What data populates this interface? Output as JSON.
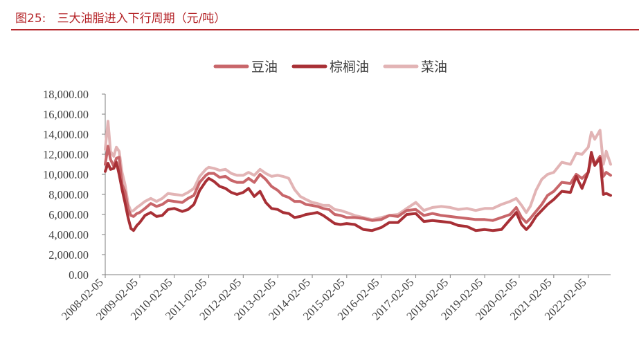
{
  "header": {
    "figure_title": "图25:   三大油脂进入下行周期（元/吨）",
    "rule_color": "#b5262a"
  },
  "chart_data": {
    "type": "line",
    "title": "",
    "xlabel": "",
    "ylabel": "",
    "ylim": [
      0,
      18000
    ],
    "y_ticks": [
      0,
      2000,
      4000,
      6000,
      8000,
      10000,
      12000,
      14000,
      16000,
      18000
    ],
    "y_tick_labels": [
      "0.00",
      "2,000.00",
      "4,000.00",
      "6,000.00",
      "8,000.00",
      "10,000.00",
      "12,000.00",
      "14,000.00",
      "16,000.00",
      "18,000.00"
    ],
    "x_ticks": [
      "2008-02-05",
      "2009-02-05",
      "2010-02-05",
      "2011-02-05",
      "2012-02-05",
      "2013-02-05",
      "2014-02-05",
      "2015-02-05",
      "2016-02-05",
      "2017-02-05",
      "2018-02-05",
      "2019-02-05",
      "2020-02-05",
      "2021-02-05",
      "2022-02-05"
    ],
    "x_end": "2022-09-30",
    "grid": false,
    "legend_position": "top",
    "series": [
      {
        "name": "豆油",
        "color": "#c8666a",
        "points": [
          [
            "2008-02-05",
            11000
          ],
          [
            "2008-03-05",
            12800
          ],
          [
            "2008-04-01",
            11500
          ],
          [
            "2008-05-05",
            10800
          ],
          [
            "2008-06-02",
            11600
          ],
          [
            "2008-07-01",
            11700
          ],
          [
            "2008-08-01",
            9000
          ],
          [
            "2008-09-01",
            8300
          ],
          [
            "2008-10-06",
            6500
          ],
          [
            "2008-11-03",
            5900
          ],
          [
            "2008-12-01",
            5800
          ],
          [
            "2009-01-05",
            6100
          ],
          [
            "2009-02-05",
            6200
          ],
          [
            "2009-04-01",
            6600
          ],
          [
            "2009-06-01",
            7100
          ],
          [
            "2009-08-01",
            6800
          ],
          [
            "2009-10-01",
            7000
          ],
          [
            "2009-12-01",
            7400
          ],
          [
            "2010-02-05",
            7300
          ],
          [
            "2010-05-01",
            7200
          ],
          [
            "2010-07-01",
            7600
          ],
          [
            "2010-09-01",
            7900
          ],
          [
            "2010-11-01",
            9200
          ],
          [
            "2011-01-05",
            9900
          ],
          [
            "2011-02-05",
            10100
          ],
          [
            "2011-04-01",
            10100
          ],
          [
            "2011-06-01",
            9700
          ],
          [
            "2011-08-01",
            9800
          ],
          [
            "2011-10-01",
            9400
          ],
          [
            "2011-12-01",
            9200
          ],
          [
            "2012-02-05",
            9200
          ],
          [
            "2012-04-01",
            9600
          ],
          [
            "2012-06-01",
            9200
          ],
          [
            "2012-08-01",
            10000
          ],
          [
            "2012-10-01",
            9500
          ],
          [
            "2012-12-01",
            8800
          ],
          [
            "2013-02-05",
            8400
          ],
          [
            "2013-04-01",
            7900
          ],
          [
            "2013-06-01",
            7700
          ],
          [
            "2013-08-01",
            7300
          ],
          [
            "2013-10-01",
            7300
          ],
          [
            "2013-12-01",
            7000
          ],
          [
            "2014-02-05",
            6900
          ],
          [
            "2014-04-01",
            6800
          ],
          [
            "2014-06-01",
            6600
          ],
          [
            "2014-08-01",
            6500
          ],
          [
            "2014-10-01",
            6000
          ],
          [
            "2014-12-01",
            5900
          ],
          [
            "2015-02-05",
            5700
          ],
          [
            "2015-05-01",
            5700
          ],
          [
            "2015-08-01",
            5600
          ],
          [
            "2015-11-01",
            5400
          ],
          [
            "2016-02-05",
            5500
          ],
          [
            "2016-05-01",
            5900
          ],
          [
            "2016-08-01",
            5800
          ],
          [
            "2016-11-01",
            6400
          ],
          [
            "2017-02-05",
            6500
          ],
          [
            "2017-05-01",
            5900
          ],
          [
            "2017-08-01",
            6100
          ],
          [
            "2017-11-01",
            5900
          ],
          [
            "2018-02-05",
            5800
          ],
          [
            "2018-05-01",
            5700
          ],
          [
            "2018-08-01",
            5600
          ],
          [
            "2018-11-01",
            5500
          ],
          [
            "2019-02-05",
            5500
          ],
          [
            "2019-05-01",
            5400
          ],
          [
            "2019-08-01",
            5700
          ],
          [
            "2019-11-01",
            6000
          ],
          [
            "2020-01-05",
            6700
          ],
          [
            "2020-03-01",
            5700
          ],
          [
            "2020-04-20",
            5200
          ],
          [
            "2020-06-01",
            5600
          ],
          [
            "2020-08-01",
            6300
          ],
          [
            "2020-10-01",
            7000
          ],
          [
            "2020-12-01",
            7900
          ],
          [
            "2021-02-05",
            8300
          ],
          [
            "2021-05-01",
            9200
          ],
          [
            "2021-08-01",
            9100
          ],
          [
            "2021-10-01",
            10000
          ],
          [
            "2021-12-01",
            9600
          ],
          [
            "2022-02-05",
            10200
          ],
          [
            "2022-03-10",
            11600
          ],
          [
            "2022-04-15",
            11000
          ],
          [
            "2022-06-10",
            11800
          ],
          [
            "2022-07-15",
            9800
          ],
          [
            "2022-08-15",
            10200
          ],
          [
            "2022-09-30",
            9900
          ]
        ]
      },
      {
        "name": "棕榈油",
        "color": "#a83036",
        "points": [
          [
            "2008-02-05",
            10300
          ],
          [
            "2008-03-05",
            11100
          ],
          [
            "2008-04-01",
            10500
          ],
          [
            "2008-05-05",
            10600
          ],
          [
            "2008-06-02",
            11200
          ],
          [
            "2008-07-01",
            10000
          ],
          [
            "2008-08-01",
            8500
          ],
          [
            "2008-09-01",
            7200
          ],
          [
            "2008-10-06",
            5600
          ],
          [
            "2008-11-03",
            4600
          ],
          [
            "2008-12-01",
            4400
          ],
          [
            "2009-01-05",
            4900
          ],
          [
            "2009-02-05",
            5200
          ],
          [
            "2009-04-01",
            5900
          ],
          [
            "2009-06-01",
            6200
          ],
          [
            "2009-08-01",
            5800
          ],
          [
            "2009-10-01",
            5900
          ],
          [
            "2009-12-01",
            6500
          ],
          [
            "2010-02-05",
            6600
          ],
          [
            "2010-05-01",
            6300
          ],
          [
            "2010-07-01",
            6500
          ],
          [
            "2010-09-01",
            7000
          ],
          [
            "2010-11-01",
            8400
          ],
          [
            "2011-01-05",
            9300
          ],
          [
            "2011-02-05",
            9600
          ],
          [
            "2011-04-01",
            9300
          ],
          [
            "2011-06-01",
            8800
          ],
          [
            "2011-08-01",
            8600
          ],
          [
            "2011-10-01",
            8200
          ],
          [
            "2011-12-01",
            8000
          ],
          [
            "2012-02-05",
            8200
          ],
          [
            "2012-04-01",
            8600
          ],
          [
            "2012-06-01",
            7800
          ],
          [
            "2012-08-01",
            8300
          ],
          [
            "2012-10-01",
            7200
          ],
          [
            "2012-12-01",
            6600
          ],
          [
            "2013-02-05",
            6500
          ],
          [
            "2013-04-01",
            6200
          ],
          [
            "2013-06-01",
            6100
          ],
          [
            "2013-08-01",
            5700
          ],
          [
            "2013-10-01",
            5800
          ],
          [
            "2013-12-01",
            6000
          ],
          [
            "2014-02-05",
            6100
          ],
          [
            "2014-04-01",
            6200
          ],
          [
            "2014-06-01",
            5900
          ],
          [
            "2014-08-01",
            5500
          ],
          [
            "2014-10-01",
            5100
          ],
          [
            "2014-12-01",
            5000
          ],
          [
            "2015-02-05",
            5100
          ],
          [
            "2015-05-01",
            5000
          ],
          [
            "2015-08-01",
            4500
          ],
          [
            "2015-11-01",
            4400
          ],
          [
            "2016-02-05",
            4700
          ],
          [
            "2016-05-01",
            5200
          ],
          [
            "2016-08-01",
            5200
          ],
          [
            "2016-11-01",
            6000
          ],
          [
            "2017-02-05",
            6100
          ],
          [
            "2017-05-01",
            5300
          ],
          [
            "2017-08-01",
            5400
          ],
          [
            "2017-11-01",
            5300
          ],
          [
            "2018-02-05",
            5200
          ],
          [
            "2018-05-01",
            4900
          ],
          [
            "2018-08-01",
            4800
          ],
          [
            "2018-11-01",
            4400
          ],
          [
            "2019-02-05",
            4500
          ],
          [
            "2019-05-01",
            4400
          ],
          [
            "2019-08-01",
            4500
          ],
          [
            "2019-11-01",
            5500
          ],
          [
            "2020-01-05",
            6200
          ],
          [
            "2020-03-01",
            5000
          ],
          [
            "2020-04-20",
            4500
          ],
          [
            "2020-06-01",
            4900
          ],
          [
            "2020-08-01",
            5800
          ],
          [
            "2020-10-01",
            6400
          ],
          [
            "2020-12-01",
            7000
          ],
          [
            "2021-02-05",
            7500
          ],
          [
            "2021-05-01",
            8300
          ],
          [
            "2021-08-01",
            8200
          ],
          [
            "2021-10-01",
            9800
          ],
          [
            "2021-12-01",
            8600
          ],
          [
            "2022-02-05",
            10200
          ],
          [
            "2022-03-10",
            12200
          ],
          [
            "2022-04-15",
            10900
          ],
          [
            "2022-06-10",
            11600
          ],
          [
            "2022-07-15",
            8000
          ],
          [
            "2022-08-15",
            8100
          ],
          [
            "2022-09-30",
            7900
          ]
        ]
      },
      {
        "name": "菜油",
        "color": "#e2b4b5",
        "points": [
          [
            "2008-02-05",
            12500
          ],
          [
            "2008-03-05",
            15300
          ],
          [
            "2008-04-01",
            12300
          ],
          [
            "2008-05-05",
            11800
          ],
          [
            "2008-06-02",
            12700
          ],
          [
            "2008-07-01",
            12300
          ],
          [
            "2008-08-01",
            10200
          ],
          [
            "2008-09-01",
            9000
          ],
          [
            "2008-10-06",
            7000
          ],
          [
            "2008-11-03",
            6300
          ],
          [
            "2008-12-01",
            6400
          ],
          [
            "2009-01-05",
            6700
          ],
          [
            "2009-02-05",
            6900
          ],
          [
            "2009-04-01",
            7300
          ],
          [
            "2009-06-01",
            7600
          ],
          [
            "2009-08-01",
            7300
          ],
          [
            "2009-10-01",
            7600
          ],
          [
            "2009-12-01",
            8100
          ],
          [
            "2010-02-05",
            8000
          ],
          [
            "2010-05-01",
            7900
          ],
          [
            "2010-07-01",
            8200
          ],
          [
            "2010-09-01",
            8600
          ],
          [
            "2010-11-01",
            9800
          ],
          [
            "2011-01-05",
            10500
          ],
          [
            "2011-02-05",
            10700
          ],
          [
            "2011-04-01",
            10600
          ],
          [
            "2011-06-01",
            10400
          ],
          [
            "2011-08-01",
            10500
          ],
          [
            "2011-10-01",
            10100
          ],
          [
            "2011-12-01",
            9900
          ],
          [
            "2012-02-05",
            9900
          ],
          [
            "2012-04-01",
            10200
          ],
          [
            "2012-06-01",
            9900
          ],
          [
            "2012-08-01",
            10500
          ],
          [
            "2012-10-01",
            10100
          ],
          [
            "2012-12-01",
            9800
          ],
          [
            "2013-02-05",
            9900
          ],
          [
            "2013-04-01",
            9800
          ],
          [
            "2013-06-01",
            9600
          ],
          [
            "2013-08-01",
            8500
          ],
          [
            "2013-10-01",
            7800
          ],
          [
            "2013-12-01",
            7500
          ],
          [
            "2014-02-05",
            7200
          ],
          [
            "2014-04-01",
            7100
          ],
          [
            "2014-06-01",
            6900
          ],
          [
            "2014-08-01",
            6900
          ],
          [
            "2014-10-01",
            6500
          ],
          [
            "2014-12-01",
            6400
          ],
          [
            "2015-02-05",
            6200
          ],
          [
            "2015-05-01",
            5900
          ],
          [
            "2015-08-01",
            5700
          ],
          [
            "2015-11-01",
            5500
          ],
          [
            "2016-02-05",
            5700
          ],
          [
            "2016-05-01",
            5900
          ],
          [
            "2016-08-01",
            6000
          ],
          [
            "2016-11-01",
            6600
          ],
          [
            "2017-02-05",
            7200
          ],
          [
            "2017-05-01",
            6400
          ],
          [
            "2017-08-01",
            6700
          ],
          [
            "2017-11-01",
            6800
          ],
          [
            "2018-02-05",
            6700
          ],
          [
            "2018-05-01",
            6500
          ],
          [
            "2018-08-01",
            6600
          ],
          [
            "2018-11-01",
            6400
          ],
          [
            "2019-02-05",
            6600
          ],
          [
            "2019-05-01",
            6600
          ],
          [
            "2019-08-01",
            7000
          ],
          [
            "2019-11-01",
            7300
          ],
          [
            "2020-01-05",
            7600
          ],
          [
            "2020-03-01",
            6900
          ],
          [
            "2020-04-20",
            6200
          ],
          [
            "2020-06-01",
            6800
          ],
          [
            "2020-08-01",
            8400
          ],
          [
            "2020-10-01",
            9500
          ],
          [
            "2020-12-01",
            10000
          ],
          [
            "2021-02-05",
            10200
          ],
          [
            "2021-05-01",
            11200
          ],
          [
            "2021-08-01",
            11000
          ],
          [
            "2021-10-01",
            12100
          ],
          [
            "2021-12-01",
            12000
          ],
          [
            "2022-02-05",
            12700
          ],
          [
            "2022-03-10",
            14200
          ],
          [
            "2022-04-15",
            13500
          ],
          [
            "2022-06-10",
            14400
          ],
          [
            "2022-07-15",
            11000
          ],
          [
            "2022-08-15",
            12300
          ],
          [
            "2022-09-30",
            11000
          ]
        ]
      }
    ]
  }
}
